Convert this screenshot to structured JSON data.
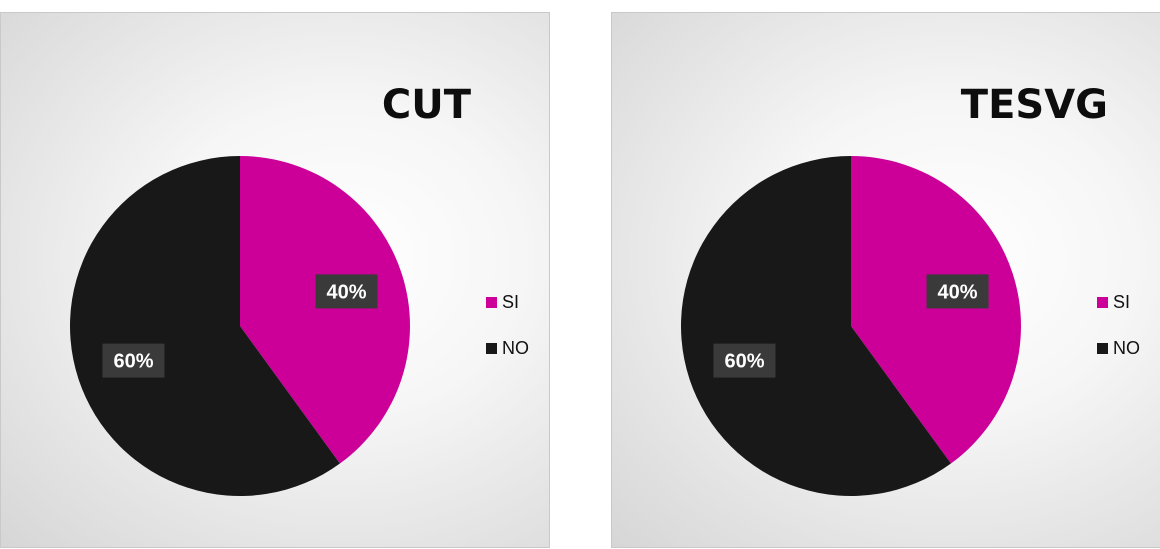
{
  "colors": {
    "SI": "#cc0099",
    "NO": "#181818"
  },
  "chart_data": [
    {
      "type": "pie",
      "title": "CUT",
      "categories": [
        "SI",
        "NO"
      ],
      "values": [
        40,
        60
      ],
      "data_labels": [
        "40%",
        "60%"
      ],
      "legend": "right"
    },
    {
      "type": "pie",
      "title": "TESVG",
      "categories": [
        "SI",
        "NO"
      ],
      "values": [
        40,
        60
      ],
      "data_labels": [
        "40%",
        "60%"
      ],
      "legend": "right"
    }
  ]
}
